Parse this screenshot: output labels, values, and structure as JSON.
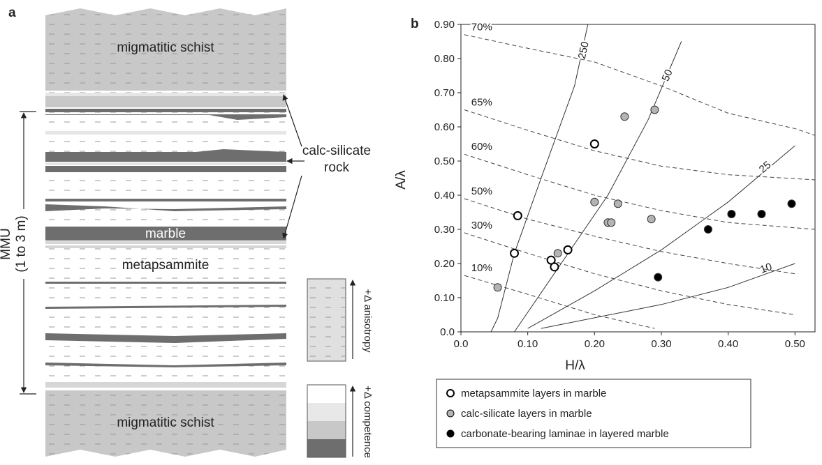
{
  "panel_a": {
    "label": "a",
    "top_unit": "migmatitic schist",
    "bottom_unit": "migmatitic schist",
    "callout_line1": "calc-silicate",
    "callout_line2": "rock",
    "marble": "marble",
    "metapsammite": "metapsammite",
    "mmu_line1": "MMU",
    "mmu_line2": "(1 to 3 m)",
    "anisotropy_key": "+Δ anisotropy",
    "competence_key": "+Δ competence"
  },
  "chart_data": {
    "type": "scatter",
    "panel_label": "b",
    "x_label": "H/λ",
    "y_label": "A/λ",
    "xlim": [
      0,
      0.53
    ],
    "ylim": [
      0,
      0.9
    ],
    "xticks": [
      {
        "value": 0,
        "label": "0.0"
      },
      {
        "value": 0.1,
        "label": "0.10"
      },
      {
        "value": 0.2,
        "label": "0.20"
      },
      {
        "value": 0.3,
        "label": "0.30"
      },
      {
        "value": 0.4,
        "label": "0.40"
      },
      {
        "value": 0.5,
        "label": "0.50"
      }
    ],
    "yticks": [
      {
        "value": 0,
        "label": "0.0"
      },
      {
        "value": 0.1,
        "label": "0.10"
      },
      {
        "value": 0.2,
        "label": "0.20"
      },
      {
        "value": 0.3,
        "label": "0.30"
      },
      {
        "value": 0.4,
        "label": "0.40"
      },
      {
        "value": 0.5,
        "label": "0.50"
      },
      {
        "value": 0.6,
        "label": "0.60"
      },
      {
        "value": 0.7,
        "label": "0.70"
      },
      {
        "value": 0.8,
        "label": "0.80"
      },
      {
        "value": 0.9,
        "label": "0.90"
      }
    ],
    "series": [
      {
        "name": "metapsammite layers in marble",
        "color": "#ffffff",
        "x": [
          0.085,
          0.08,
          0.135,
          0.14,
          0.16,
          0.2
        ],
        "y": [
          0.34,
          0.23,
          0.21,
          0.19,
          0.24,
          0.55
        ]
      },
      {
        "name": "calc-silicate layers in marble",
        "color": "#b4b4b4",
        "x": [
          0.055,
          0.145,
          0.2,
          0.22,
          0.225,
          0.235,
          0.245,
          0.29,
          0.285
        ],
        "y": [
          0.13,
          0.23,
          0.38,
          0.32,
          0.32,
          0.375,
          0.63,
          0.65,
          0.33
        ]
      },
      {
        "name": "carbonate-bearing laminae in layered marble",
        "color": "#000000",
        "x": [
          0.295,
          0.37,
          0.405,
          0.45,
          0.495
        ],
        "y": [
          0.16,
          0.3,
          0.345,
          0.345,
          0.375
        ]
      }
    ],
    "contours": [
      {
        "label": "250",
        "style": "solid",
        "x": [
          0.045,
          0.055,
          0.08,
          0.12,
          0.17,
          0.19
        ],
        "y": [
          0.0,
          0.04,
          0.23,
          0.45,
          0.72,
          0.9
        ]
      },
      {
        "label": "50",
        "style": "solid",
        "x": [
          0.08,
          0.15,
          0.22,
          0.28,
          0.33
        ],
        "y": [
          0.0,
          0.2,
          0.4,
          0.62,
          0.85
        ]
      },
      {
        "label": "25",
        "style": "solid",
        "x": [
          0.1,
          0.2,
          0.3,
          0.4,
          0.5
        ],
        "y": [
          0.01,
          0.12,
          0.24,
          0.38,
          0.545
        ]
      },
      {
        "label": "10",
        "style": "solid",
        "x": [
          0.12,
          0.3,
          0.4,
          0.5
        ],
        "y": [
          0.01,
          0.08,
          0.13,
          0.2
        ]
      },
      {
        "label": "70%",
        "style": "dashed",
        "x": [
          0.005,
          0.1,
          0.2,
          0.3,
          0.4,
          0.5,
          0.53
        ],
        "y": [
          0.87,
          0.83,
          0.79,
          0.72,
          0.64,
          0.595,
          0.575
        ]
      },
      {
        "label": "65%",
        "style": "dashed",
        "x": [
          0.005,
          0.1,
          0.2,
          0.3,
          0.4,
          0.53
        ],
        "y": [
          0.65,
          0.59,
          0.53,
          0.485,
          0.46,
          0.445
        ]
      },
      {
        "label": "60%",
        "style": "dashed",
        "x": [
          0.005,
          0.1,
          0.2,
          0.3,
          0.4,
          0.53
        ],
        "y": [
          0.52,
          0.46,
          0.4,
          0.355,
          0.32,
          0.3
        ]
      },
      {
        "label": "50%",
        "style": "dashed",
        "x": [
          0.005,
          0.1,
          0.2,
          0.3,
          0.4,
          0.5
        ],
        "y": [
          0.39,
          0.33,
          0.28,
          0.235,
          0.2,
          0.17
        ]
      },
      {
        "label": "30%",
        "style": "dashed",
        "x": [
          0.005,
          0.1,
          0.2,
          0.3,
          0.4,
          0.5
        ],
        "y": [
          0.29,
          0.23,
          0.17,
          0.12,
          0.08,
          0.05
        ]
      },
      {
        "label": "10%",
        "style": "dashed",
        "x": [
          0.005,
          0.1,
          0.2,
          0.29
        ],
        "y": [
          0.165,
          0.11,
          0.05,
          0.01
        ]
      }
    ]
  }
}
